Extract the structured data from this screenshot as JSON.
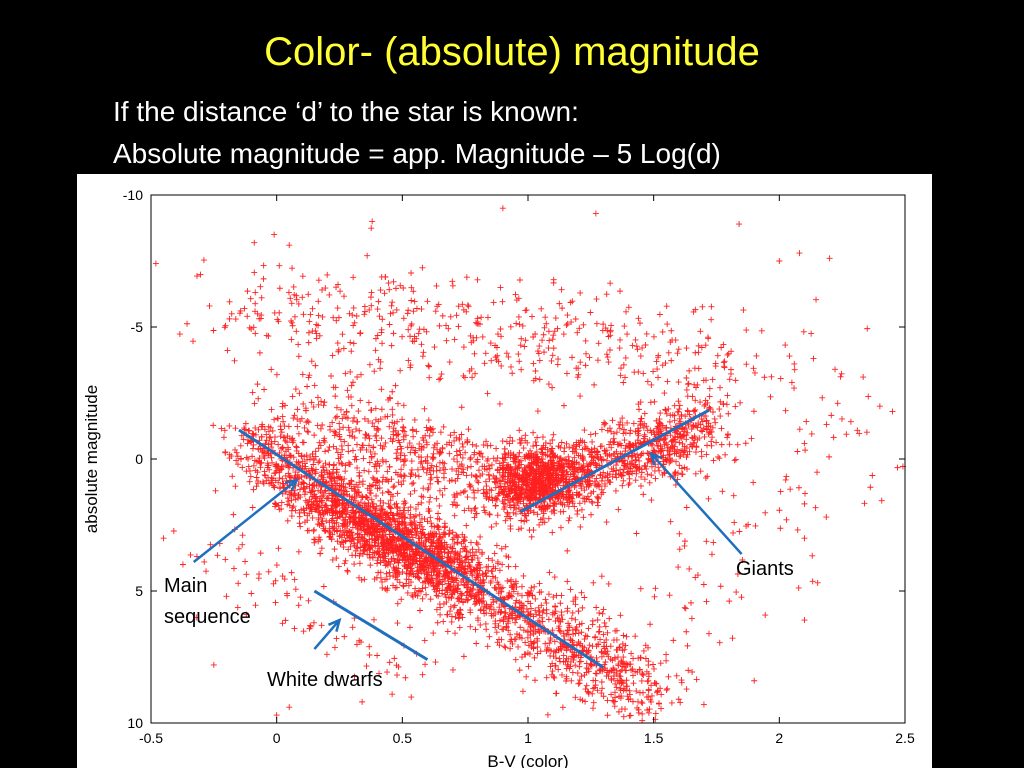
{
  "slide": {
    "title": "Color- (absolute) magnitude",
    "line1": "If  the distance ‘d’   to the star is known:",
    "line2": "Absolute magnitude = app. Magnitude – 5 Log(d)"
  },
  "chart_data": {
    "type": "scatter",
    "xlabel": "B-V (color)",
    "ylabel": "absolute magnitude",
    "xlim": [
      -0.5,
      2.5
    ],
    "ylim": [
      10,
      -10
    ],
    "y_inverted": true,
    "x_ticks": [
      "-0.5",
      "0",
      "0.5",
      "1",
      "1.5",
      "2",
      "2.5"
    ],
    "y_ticks": [
      "-10",
      "-5",
      "0",
      "5",
      "10"
    ],
    "grid": false,
    "marker": "plus",
    "marker_color": "#ff2020",
    "line_color": "#1f6fbf",
    "annotations": [
      {
        "id": "main-sequence",
        "text": [
          "Main",
          "sequence"
        ]
      },
      {
        "id": "giants",
        "text": [
          "Giants"
        ]
      },
      {
        "id": "white-dwarfs",
        "text": [
          "White dwarfs"
        ]
      }
    ],
    "fit_lines": [
      {
        "name": "main-sequence-line",
        "from": [
          -0.15,
          -1.1
        ],
        "to": [
          1.3,
          7.9
        ]
      },
      {
        "name": "giants-line",
        "from": [
          0.97,
          2.0
        ],
        "to": [
          1.72,
          -1.85
        ]
      },
      {
        "name": "white-dwarfs-line",
        "from": [
          0.15,
          5.0
        ],
        "to": [
          0.6,
          7.6
        ]
      }
    ],
    "arrows": [
      {
        "name": "main-sequence-arrow",
        "from": [
          -0.33,
          3.9
        ],
        "to": [
          0.08,
          0.8
        ]
      },
      {
        "name": "giants-arrow",
        "from": [
          1.85,
          3.6
        ],
        "to": [
          1.49,
          -0.2
        ]
      },
      {
        "name": "white-dwarfs-arrow",
        "from": [
          0.15,
          7.2
        ],
        "to": [
          0.25,
          6.1
        ]
      }
    ],
    "clusters": [
      {
        "name": "main-sequence",
        "count": 1900,
        "from": [
          -0.12,
          -0.6
        ],
        "to": [
          1.48,
          8.9
        ],
        "spread": [
          0.07,
          0.75
        ]
      },
      {
        "name": "main-sequence-core",
        "count": 900,
        "from": [
          0.2,
          1.7
        ],
        "to": [
          0.7,
          4.5
        ],
        "spread": [
          0.09,
          0.6
        ]
      },
      {
        "name": "giants-clump",
        "count": 700,
        "center": [
          1.02,
          0.8
        ],
        "spread": [
          0.09,
          0.7
        ]
      },
      {
        "name": "giant-branch",
        "count": 900,
        "from": [
          1.0,
          1.3
        ],
        "to": [
          1.72,
          -1.3
        ],
        "spread": [
          0.08,
          0.65
        ]
      },
      {
        "name": "subgiants",
        "count": 500,
        "from": [
          0.1,
          -1.7
        ],
        "to": [
          0.9,
          1.0
        ],
        "spread": [
          0.12,
          0.8
        ]
      },
      {
        "name": "bright-stars",
        "count": 500,
        "from": [
          -0.15,
          -6.0
        ],
        "to": [
          1.8,
          -3.5
        ],
        "spread": [
          0.2,
          1.0
        ]
      },
      {
        "name": "white-dwarfs",
        "count": 100,
        "from": [
          -0.3,
          3.0
        ],
        "to": [
          0.6,
          8.2
        ],
        "spread": [
          0.1,
          0.8
        ]
      },
      {
        "name": "red-outliers",
        "count": 140,
        "from": [
          1.4,
          7.0
        ],
        "to": [
          2.4,
          -3.0
        ],
        "spread": [
          0.25,
          1.6
        ]
      }
    ],
    "outliers": [
      [
        0.9,
        -9.5
      ],
      [
        1.27,
        -9.3
      ],
      [
        0.38,
        -9.0
      ],
      [
        -0.01,
        -8.5
      ],
      [
        0.05,
        -8.1
      ],
      [
        0.36,
        -7.7
      ],
      [
        1.84,
        -8.9
      ],
      [
        2.08,
        -7.8
      ],
      [
        2.2,
        -7.6
      ],
      [
        2.0,
        -7.5
      ],
      [
        2.4,
        -2.0
      ],
      [
        2.45,
        -1.8
      ],
      [
        2.05,
        -2.9
      ],
      [
        2.1,
        1.7
      ],
      [
        2.15,
        0.5
      ],
      [
        2.1,
        3.0
      ],
      [
        2.1,
        6.1
      ],
      [
        -0.25,
        7.8
      ],
      [
        -0.32,
        6.0
      ],
      [
        -0.2,
        5.2
      ],
      [
        -0.45,
        3.0
      ],
      [
        0.0,
        9.7
      ],
      [
        0.05,
        9.4
      ],
      [
        1.9,
        8.4
      ],
      [
        1.7,
        9.3
      ],
      [
        1.6,
        9.1
      ],
      [
        0.98,
        8.8
      ],
      [
        0.45,
        10.0
      ],
      [
        0.34,
        9.2
      ],
      [
        -0.18,
        10.0
      ]
    ]
  }
}
